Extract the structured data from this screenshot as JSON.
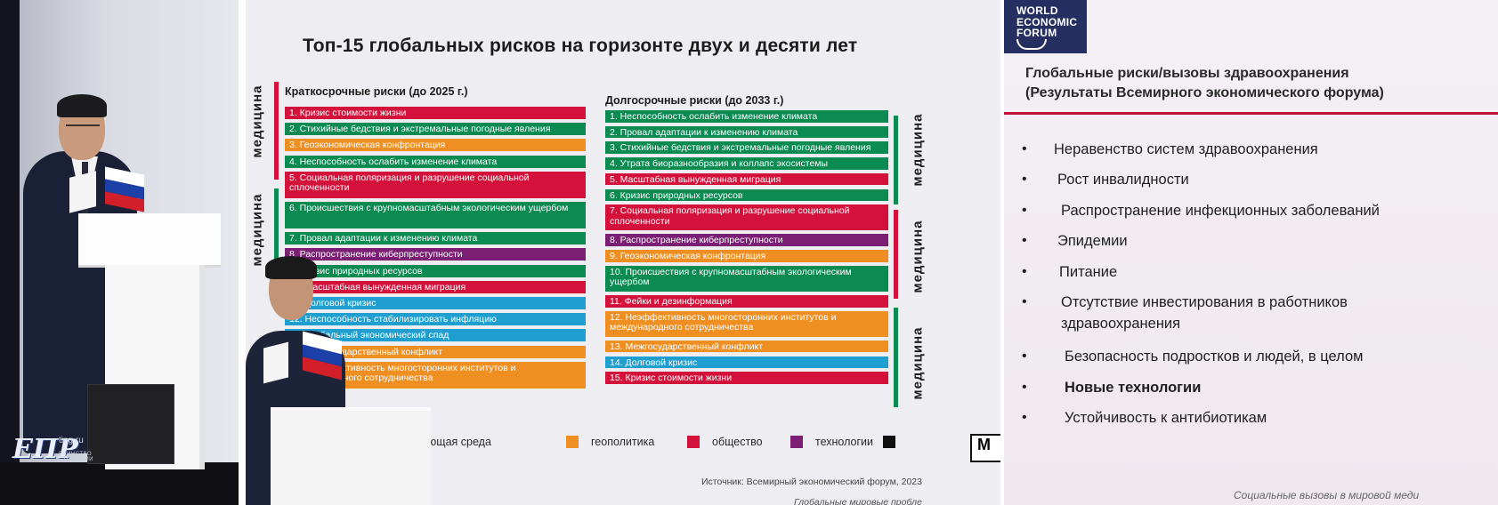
{
  "watermark": {
    "logo": "ЕПР",
    "site": "ting.ru",
    "sub": "ЕДИНСТВО СТРАТЕГИИ"
  },
  "slide": {
    "title": "Топ-15 глобальных рисков на горизонте двух и десяти лет",
    "short_term": {
      "heading": "Краткосрочные риски (до 2025 г.)",
      "items": [
        {
          "label": "1. Кризис стоимости жизни",
          "color": "#d4113b",
          "lines": 1
        },
        {
          "label": "2. Стихийные бедствия и экстремальные погодные явления",
          "color": "#0b8a52",
          "lines": 1
        },
        {
          "label": "3. Геоэкономическая конфронтация",
          "color": "#f08f21",
          "lines": 1
        },
        {
          "label": "4. Неспособность ослабить изменение климата",
          "color": "#0b8a52",
          "lines": 1
        },
        {
          "label": "5. Социальная поляризация и разрушение социальной сплоченности",
          "color": "#d4113b",
          "lines": 2
        },
        {
          "label": "6. Происшествия с крупномасштабным экологическим ущербом",
          "color": "#0b8a52",
          "lines": 2
        },
        {
          "label": "7. Провал адаптации к изменению климата",
          "color": "#0b8a52",
          "lines": 1
        },
        {
          "label": "8. Распространение киберпреступности",
          "color": "#7a1f74",
          "lines": 1
        },
        {
          "label": "9. Кризис природных ресурсов",
          "color": "#0b8a52",
          "lines": 1
        },
        {
          "label": "10. Масштабная вынужденная миграция",
          "color": "#d4113b",
          "lines": 1
        },
        {
          "label": "11. Долговой кризис",
          "color": "#1f9fcf",
          "lines": 1
        },
        {
          "label": "12. Неспособность стабилизировать инфляцию",
          "color": "#1f9fcf",
          "lines": 1
        },
        {
          "label": "13. Глобальный экономический спад",
          "color": "#1f9fcf",
          "lines": 1
        },
        {
          "label": "14. Межгосударственный конфликт",
          "color": "#f08f21",
          "lines": 1
        },
        {
          "label": "15. Неэффективность многосторонних институтов и международного сотрудничества",
          "color": "#f08f21",
          "lines": 2
        }
      ]
    },
    "long_term": {
      "heading": "Долгосрочные риски (до 2033 г.)",
      "items": [
        {
          "label": "1. Неспособность ослабить изменение климата",
          "color": "#0b8a52",
          "lines": 1
        },
        {
          "label": "2. Провал адаптации к изменению климата",
          "color": "#0b8a52",
          "lines": 1
        },
        {
          "label": "3. Стихийные бедствия и экстремальные погодные явления",
          "color": "#0b8a52",
          "lines": 1
        },
        {
          "label": "4. Утрата биоразнообразия и коллапс экосистемы",
          "color": "#0b8a52",
          "lines": 1
        },
        {
          "label": "5. Масштабная вынужденная миграция",
          "color": "#d4113b",
          "lines": 1
        },
        {
          "label": "6. Кризис природных ресурсов",
          "color": "#0b8a52",
          "lines": 1
        },
        {
          "label": "7. Социальная поляризация и разрушение социальной сплоченности",
          "color": "#d4113b",
          "lines": 2
        },
        {
          "label": "8. Распространение киберпреступности",
          "color": "#7a1f74",
          "lines": 1
        },
        {
          "label": "9. Геоэкономическая конфронтация",
          "color": "#f08f21",
          "lines": 1
        },
        {
          "label": "10. Происшествия с крупномасштабным экологическим ущербом",
          "color": "#0b8a52",
          "lines": 2
        },
        {
          "label": "11. Фейки и дезинформация",
          "color": "#d4113b",
          "lines": 1
        },
        {
          "label": "12. Неэффективность многосторонних институтов и международного сотрудничества",
          "color": "#f08f21",
          "lines": 2
        },
        {
          "label": "13. Межгосударственный конфликт",
          "color": "#f08f21",
          "lines": 1
        },
        {
          "label": "14. Долговой кризис",
          "color": "#1f9fcf",
          "lines": 1
        },
        {
          "label": "15. Кризис стоимости жизни",
          "color": "#d4113b",
          "lines": 1
        }
      ]
    },
    "side_label": "медицина",
    "legend": [
      {
        "label": "окружающая среда",
        "color": "#0b8a52"
      },
      {
        "label": "геополитика",
        "color": "#f08f21"
      },
      {
        "label": "общество",
        "color": "#d4113b"
      },
      {
        "label": "технологии",
        "color": "#7a1f74"
      },
      {
        "label": "",
        "color": "#111111"
      }
    ],
    "legend_tail": "М",
    "source": "Источник: Всемирный экономический форум, 2023",
    "footer": "Глобальные мировые пробле"
  },
  "wef": {
    "logo_lines": [
      "WORLD",
      "ECONOMIC",
      "FORUM"
    ],
    "title_line1": "Глобальные риски/вызовы здравоохранения",
    "title_line2": "(Результаты Всемирного экономического форума)",
    "accent": "#c40f3a",
    "bullet": "•",
    "items": [
      {
        "text": "Неравенство систем здравоохранения"
      },
      {
        "text": "Рост инвалидности"
      },
      {
        "text": "Распространение инфекционных заболеваний"
      },
      {
        "text": "Эпидемии"
      },
      {
        "text": "Питание"
      },
      {
        "text": "Отсутствие инвестирования в работников",
        "text2": "здравоохранения"
      },
      {
        "text": "Безопасность подростков и людей, в целом"
      },
      {
        "text": "Новые технологии",
        "bold": true
      },
      {
        "text": "Устойчивость к антибиотикам"
      }
    ],
    "footer": "Социальные вызовы в мировой меди"
  }
}
